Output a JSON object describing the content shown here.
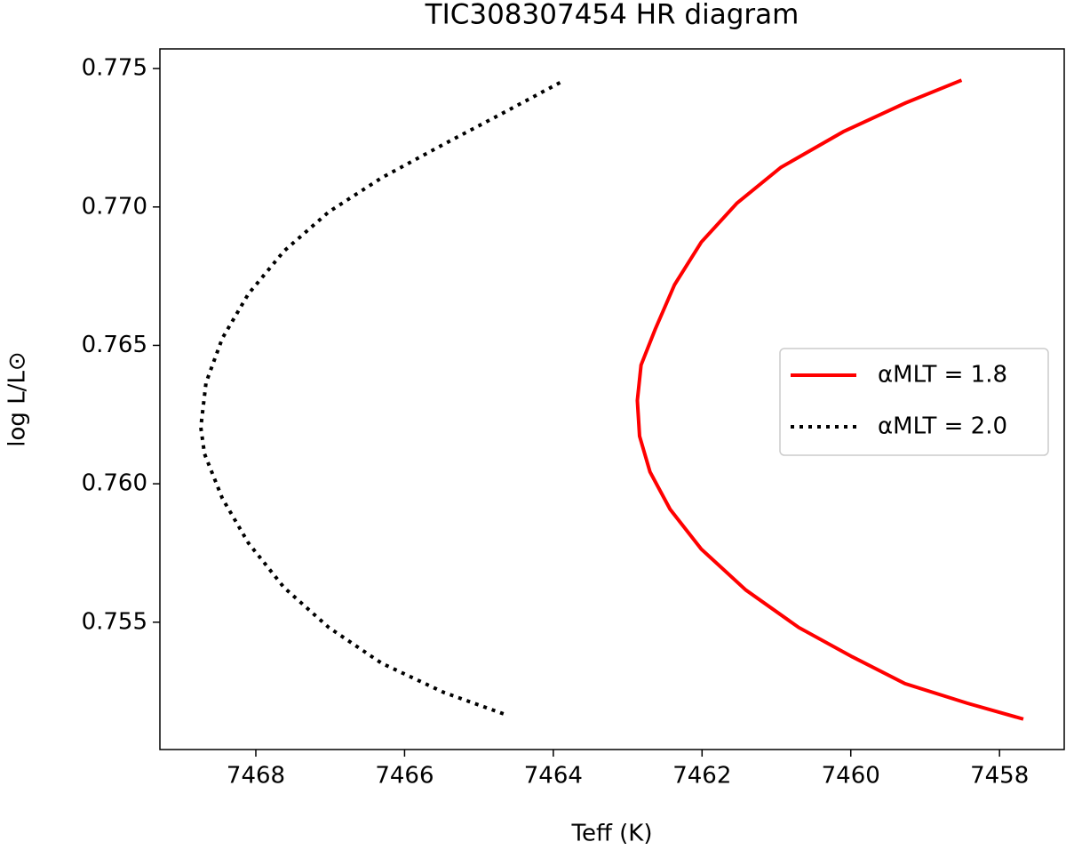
{
  "chart_data": {
    "type": "line",
    "title": "TIC308307454 HR diagram",
    "x_label": "Teff (K)",
    "y_label": "log L/L⊙",
    "xlim": [
      7469.29,
      7457.13
    ],
    "xticks": [
      7468,
      7466,
      7464,
      7462,
      7460,
      7458
    ],
    "ylim": [
      0.7504,
      0.77571
    ],
    "yticks": [
      {
        "value": 0.755,
        "label": "0.755"
      },
      {
        "value": 0.76,
        "label": "0.760"
      },
      {
        "value": 0.765,
        "label": "0.765"
      },
      {
        "value": 0.77,
        "label": "0.770"
      },
      {
        "value": 0.775,
        "label": "0.775"
      }
    ],
    "grid": false,
    "legend": "center right",
    "series": [
      {
        "name": "αMLT = 1.8",
        "color": "#ff0000",
        "style": "solid",
        "x": [
          7457.68,
          7458.43,
          7459.27,
          7459.98,
          7460.7,
          7461.41,
          7462.01,
          7462.43,
          7462.7,
          7462.84,
          7462.87,
          7462.82,
          7462.63,
          7462.37,
          7462.01,
          7461.53,
          7460.94,
          7460.1,
          7459.27,
          7458.51
        ],
        "values": [
          0.7515,
          0.75207,
          0.75278,
          0.75375,
          0.75481,
          0.75616,
          0.75764,
          0.75908,
          0.76043,
          0.76172,
          0.76301,
          0.76429,
          0.76558,
          0.76719,
          0.76873,
          0.77014,
          0.77143,
          0.77272,
          0.77375,
          0.77458
        ]
      },
      {
        "name": "αMLT = 2.0",
        "color": "#000000",
        "style": "dotted",
        "x": [
          7464.67,
          7465.47,
          7466.31,
          7467.02,
          7467.62,
          7468.1,
          7468.45,
          7468.69,
          7468.74,
          7468.67,
          7468.45,
          7468.1,
          7467.62,
          7467.02,
          7466.31,
          7465.47,
          7464.63,
          7463.85
        ],
        "values": [
          0.75169,
          0.75246,
          0.75352,
          0.75481,
          0.75625,
          0.75786,
          0.75947,
          0.76108,
          0.76204,
          0.76365,
          0.76526,
          0.76686,
          0.76841,
          0.76982,
          0.77105,
          0.77227,
          0.77346,
          0.77458
        ]
      }
    ]
  }
}
